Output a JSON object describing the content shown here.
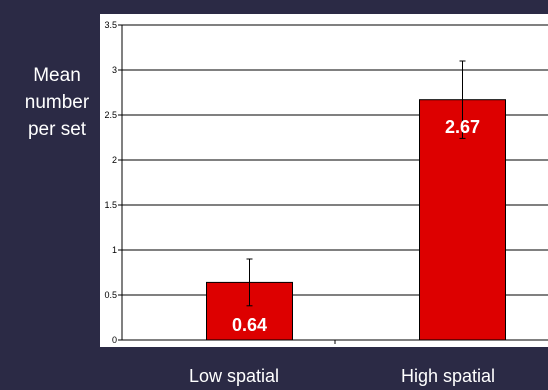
{
  "chart_data": {
    "type": "bar",
    "categories": [
      "Low spatial",
      "High spatial"
    ],
    "values": [
      0.64,
      2.67
    ],
    "errors": [
      0.26,
      0.43
    ],
    "data_labels": [
      "0.64",
      "2.67"
    ],
    "ylabel_lines": [
      "Mean",
      "number",
      "per set"
    ],
    "ylim": [
      0,
      3.5
    ],
    "yticks": [
      "0",
      "0.5",
      "1",
      "1.5",
      "2",
      "2.5",
      "3",
      "3.5"
    ],
    "grid": true,
    "bar_color": "#dd0000",
    "plot_background": "#ffffff",
    "page_background": "#2b2a45"
  }
}
